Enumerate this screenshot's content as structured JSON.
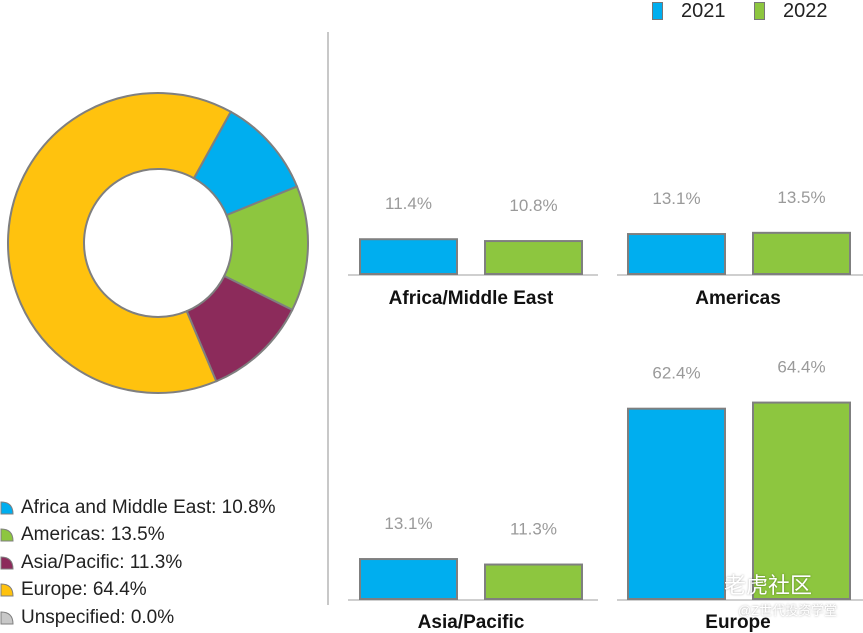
{
  "colors": {
    "africa": "#00aeef",
    "americas": "#8dc63f",
    "asia": "#8c2b5b",
    "europe": "#ffc20e",
    "unspecified": "#c8c8c8",
    "y2021": "#00aeef",
    "y2022": "#8dc63f",
    "outline": "#7f7f7f",
    "value_label": "#9a9a9a",
    "divider": "#c8c8c8"
  },
  "top_legend": [
    {
      "label": "2021",
      "color": "#00aeef"
    },
    {
      "label": "2022",
      "color": "#8dc63f"
    }
  ],
  "pie_legend": [
    {
      "label": "Africa and Middle East: 10.8%",
      "color": "#00aeef"
    },
    {
      "label": "Americas: 13.5%",
      "color": "#8dc63f"
    },
    {
      "label": "Asia/Pacific: 11.3%",
      "color": "#8c2b5b"
    },
    {
      "label": "Europe: 64.4%",
      "color": "#ffc20e"
    },
    {
      "label": "Unspecified: 0.0%",
      "color": "#c8c8c8"
    }
  ],
  "watermark": {
    "main": "老虎社区",
    "sub": "@Z世代投资学堂"
  },
  "chart_data": [
    {
      "type": "pie",
      "style": "donut",
      "categories": [
        "Africa and Middle East",
        "Americas",
        "Asia/Pacific",
        "Europe",
        "Unspecified"
      ],
      "values": [
        10.8,
        13.5,
        11.3,
        64.4,
        0.0
      ],
      "legend_position": "bottom-left"
    },
    {
      "type": "bar",
      "title": "Africa/Middle East",
      "categories": [
        "2021",
        "2022"
      ],
      "values": [
        11.4,
        10.8
      ],
      "value_labels": [
        "11.4%",
        "10.8%"
      ]
    },
    {
      "type": "bar",
      "title": "Americas",
      "categories": [
        "2021",
        "2022"
      ],
      "values": [
        13.1,
        13.5
      ],
      "value_labels": [
        "13.1%",
        "13.5%"
      ]
    },
    {
      "type": "bar",
      "title": "Asia/Pacific",
      "categories": [
        "2021",
        "2022"
      ],
      "values": [
        13.1,
        11.3
      ],
      "value_labels": [
        "13.1%",
        "11.3%"
      ]
    },
    {
      "type": "bar",
      "title": "Europe",
      "categories": [
        "2021",
        "2022"
      ],
      "values": [
        62.4,
        64.4
      ],
      "value_labels": [
        "62.4%",
        "64.4%"
      ]
    }
  ]
}
